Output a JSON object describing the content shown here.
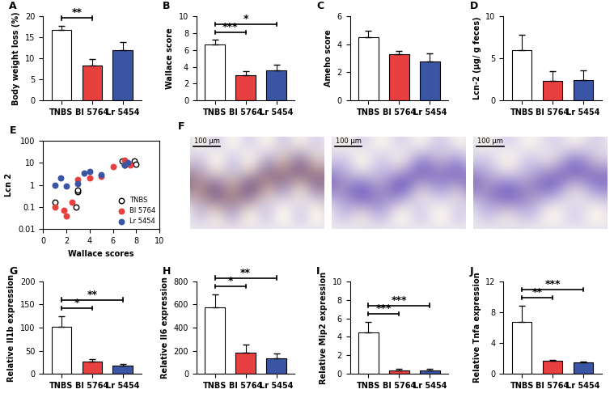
{
  "chart_data": [
    {
      "panel": "A",
      "type": "bar",
      "ylabel": "Body weight loss (%)",
      "categories": [
        "TNBS",
        "Bl 5764",
        "Lr 5454"
      ],
      "values": [
        16.7,
        8.2,
        12.0
      ],
      "errors": [
        1.0,
        1.6,
        1.8
      ],
      "colors": [
        "#ffffff",
        "#e8403f",
        "#3a55a4"
      ],
      "ylim": [
        0,
        20
      ],
      "yticks": [
        0,
        5,
        10,
        15,
        20
      ],
      "significance": [
        {
          "from": "TNBS",
          "to": "Bl 5764",
          "label": "**"
        }
      ]
    },
    {
      "panel": "B",
      "type": "bar",
      "ylabel": "Wallace score",
      "categories": [
        "TNBS",
        "Bl 5764",
        "Lr 5454"
      ],
      "values": [
        6.6,
        3.0,
        3.6
      ],
      "errors": [
        0.6,
        0.5,
        0.6
      ],
      "colors": [
        "#ffffff",
        "#e8403f",
        "#3a55a4"
      ],
      "ylim": [
        0,
        10
      ],
      "yticks": [
        0,
        2,
        4,
        6,
        8,
        10
      ],
      "significance": [
        {
          "from": "TNBS",
          "to": "Bl 5764",
          "label": "***"
        },
        {
          "from": "TNBS",
          "to": "Lr 5454",
          "label": "*"
        }
      ]
    },
    {
      "panel": "C",
      "type": "bar",
      "ylabel": "Ameho score",
      "categories": [
        "TNBS",
        "Bl 5764",
        "Lr 5454"
      ],
      "values": [
        4.5,
        3.3,
        2.8
      ],
      "errors": [
        0.45,
        0.2,
        0.55
      ],
      "colors": [
        "#ffffff",
        "#e8403f",
        "#3a55a4"
      ],
      "ylim": [
        0,
        6
      ],
      "yticks": [
        0,
        2,
        4,
        6
      ],
      "significance": []
    },
    {
      "panel": "D",
      "type": "bar",
      "ylabel": "Lcn-2 (µg/ g feces)",
      "categories": [
        "TNBS",
        "Bl 5764",
        "Lr 5454"
      ],
      "values": [
        6.0,
        2.3,
        2.4
      ],
      "errors": [
        1.8,
        1.2,
        1.2
      ],
      "colors": [
        "#ffffff",
        "#e8403f",
        "#3a55a4"
      ],
      "ylim": [
        0,
        10
      ],
      "yticks": [
        0,
        5,
        10
      ],
      "significance": []
    },
    {
      "panel": "E",
      "type": "scatter",
      "xlabel": "Wallace scores",
      "ylabel": "Lcn 2",
      "log": "y",
      "xlim": [
        0,
        10
      ],
      "xticks": [
        0,
        2,
        4,
        6,
        8,
        10
      ],
      "ylim": [
        0.01,
        100
      ],
      "yticks": [
        0.01,
        0.1,
        1,
        10,
        100
      ],
      "legend": "lower right",
      "series": [
        {
          "name": "TNBS",
          "color": "#ffffff",
          "marker": "o",
          "x": [
            1,
            2.8,
            3,
            3,
            6.8,
            7,
            7.8,
            8
          ],
          "values": [
            0.17,
            0.1,
            0.5,
            0.6,
            12,
            8,
            12,
            9
          ]
        },
        {
          "name": "Bl 5764",
          "color": "#e8403f",
          "marker": "o",
          "x": [
            1,
            1.8,
            2,
            2.5,
            3,
            4,
            5,
            6,
            7,
            7.5
          ],
          "values": [
            0.1,
            0.07,
            0.04,
            0.17,
            1.8,
            2.0,
            2.5,
            7,
            13,
            8
          ]
        },
        {
          "name": "Lr 5454",
          "color": "#3a55a4",
          "marker": "o",
          "x": [
            1,
            1.5,
            2,
            3,
            3.5,
            4,
            5,
            7,
            7.3
          ],
          "values": [
            1,
            2,
            0.9,
            1.1,
            3.5,
            4,
            3,
            8,
            10
          ]
        }
      ]
    },
    {
      "panel": "F",
      "type": "image",
      "scale_bars": [
        "100 µm",
        "100 µm",
        "100 µm"
      ]
    },
    {
      "panel": "G",
      "type": "bar",
      "ylabel": "Relative Il1b expression",
      "categories": [
        "TNBS",
        "Bl 5764",
        "Lr 5454"
      ],
      "values": [
        102,
        26,
        18
      ],
      "errors": [
        22,
        6,
        4
      ],
      "colors": [
        "#ffffff",
        "#e8403f",
        "#3a55a4"
      ],
      "ylim": [
        0,
        200
      ],
      "yticks": [
        0,
        50,
        100,
        150,
        200
      ],
      "significance": [
        {
          "from": "TNBS",
          "to": "Bl 5764",
          "label": "*"
        },
        {
          "from": "TNBS",
          "to": "Lr 5454",
          "label": "**"
        }
      ]
    },
    {
      "panel": "H",
      "type": "bar",
      "ylabel": "Relative Il6 expression",
      "categories": [
        "TNBS",
        "Bl 5764",
        "Lr 5454"
      ],
      "values": [
        575,
        180,
        135
      ],
      "errors": [
        110,
        70,
        40
      ],
      "colors": [
        "#ffffff",
        "#e8403f",
        "#3a55a4"
      ],
      "ylim": [
        0,
        800
      ],
      "yticks": [
        0,
        200,
        400,
        600,
        800
      ],
      "significance": [
        {
          "from": "TNBS",
          "to": "Bl 5764",
          "label": "*"
        },
        {
          "from": "TNBS",
          "to": "Lr 5454",
          "label": "**"
        }
      ]
    },
    {
      "panel": "I",
      "type": "bar",
      "ylabel": "Relative Mip2 expression",
      "categories": [
        "TNBS",
        "Bl 5764",
        "Lr 5454"
      ],
      "values": [
        4.5,
        0.4,
        0.4
      ],
      "errors": [
        1.1,
        0.1,
        0.1
      ],
      "colors": [
        "#ffffff",
        "#e8403f",
        "#3a55a4"
      ],
      "ylim": [
        0,
        10
      ],
      "yticks": [
        0,
        2,
        4,
        6,
        8,
        10
      ],
      "significance": [
        {
          "from": "TNBS",
          "to": "Bl 5764",
          "label": "***"
        },
        {
          "from": "TNBS",
          "to": "Lr 5454",
          "label": "***"
        }
      ]
    },
    {
      "panel": "J",
      "type": "bar",
      "ylabel": "Relative Tnfa expression",
      "categories": [
        "TNBS",
        "Bl 5764",
        "Lr 5454"
      ],
      "values": [
        6.7,
        1.7,
        1.5
      ],
      "errors": [
        2.1,
        0.15,
        0.1
      ],
      "colors": [
        "#ffffff",
        "#e8403f",
        "#3a55a4"
      ],
      "ylim": [
        0,
        12
      ],
      "yticks": [
        0,
        4,
        8,
        12
      ],
      "significance": [
        {
          "from": "TNBS",
          "to": "Bl 5764",
          "label": "**"
        },
        {
          "from": "TNBS",
          "to": "Lr 5454",
          "label": "***"
        }
      ]
    }
  ]
}
